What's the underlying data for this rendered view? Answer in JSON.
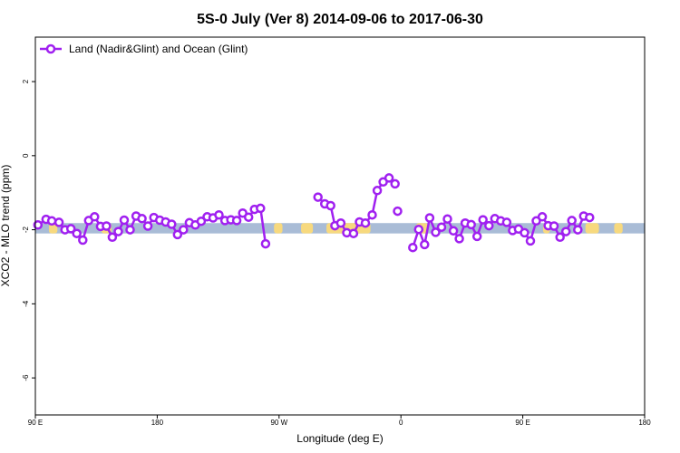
{
  "chart_data": {
    "type": "line",
    "title": "5S-0 July (Ver 8)   2014-09-06 to 2017-06-30",
    "xlabel": "Longitude (deg E)",
    "ylabel": "XCO2 - MLO trend (ppm)",
    "xlim": [
      90,
      450
    ],
    "ylim": [
      -7,
      3.2
    ],
    "x_ticks": [
      {
        "value": 90,
        "label": "90 E"
      },
      {
        "value": 162,
        "label": "180"
      },
      {
        "value": 234,
        "label": "90 W"
      },
      {
        "value": 306,
        "label": "0"
      },
      {
        "value": 378,
        "label": "90 E"
      },
      {
        "value": 450,
        "label": "180"
      }
    ],
    "y_ticks": [
      {
        "value": 2,
        "label": "2"
      },
      {
        "value": 0,
        "label": "0"
      },
      {
        "value": -2,
        "label": "-2"
      },
      {
        "value": -4,
        "label": "-4"
      },
      {
        "value": -6,
        "label": "-6"
      }
    ],
    "grid": false,
    "legend": {
      "position": "top-left",
      "entries": [
        "Land (Nadir&Glint) and Ocean (Glint)"
      ]
    },
    "colors": {
      "series": "#a020f0",
      "ocean_band": "#a9bcd6",
      "land_band": "#f7d97e"
    },
    "background_band": {
      "y_range": [
        -2.1,
        -1.82
      ],
      "land_segments": [
        [
          98,
          103
        ],
        [
          129,
          135
        ],
        [
          231,
          236
        ],
        [
          247,
          254
        ],
        [
          262,
          288
        ],
        [
          315,
          322
        ],
        [
          390,
          394
        ],
        [
          415,
          423
        ],
        [
          432,
          437
        ]
      ]
    },
    "series": [
      {
        "name": "Land (Nadir&Glint) and Ocean (Glint)",
        "segments": [
          [
            [
              91.5,
              -1.87
            ],
            [
              96.3,
              -1.72
            ],
            [
              99.7,
              -1.76
            ],
            [
              104,
              -1.8
            ],
            [
              107.5,
              -2.0
            ],
            [
              111,
              -1.97
            ],
            [
              114.5,
              -2.1
            ],
            [
              118,
              -2.28
            ],
            [
              121.5,
              -1.75
            ],
            [
              125,
              -1.65
            ],
            [
              128.5,
              -1.91
            ],
            [
              132,
              -1.9
            ],
            [
              135.5,
              -2.2
            ],
            [
              139,
              -2.05
            ],
            [
              142.5,
              -1.74
            ],
            [
              146,
              -2.0
            ],
            [
              149.5,
              -1.63
            ],
            [
              153,
              -1.7
            ],
            [
              156.5,
              -1.9
            ],
            [
              160,
              -1.67
            ],
            [
              163.5,
              -1.74
            ],
            [
              167,
              -1.79
            ],
            [
              170.5,
              -1.85
            ],
            [
              174,
              -2.13
            ],
            [
              177.5,
              -2.0
            ],
            [
              181,
              -1.81
            ],
            [
              184.5,
              -1.87
            ],
            [
              188,
              -1.77
            ],
            [
              191.5,
              -1.65
            ],
            [
              195,
              -1.68
            ],
            [
              198.5,
              -1.6
            ],
            [
              202,
              -1.75
            ],
            [
              205.5,
              -1.73
            ],
            [
              209,
              -1.75
            ],
            [
              212.5,
              -1.55
            ],
            [
              216,
              -1.66
            ],
            [
              219.5,
              -1.45
            ],
            [
              223,
              -1.42
            ],
            [
              226,
              -2.38
            ]
          ],
          [
            [
              257,
              -1.12
            ],
            [
              261,
              -1.3
            ],
            [
              264.5,
              -1.35
            ],
            [
              267,
              -1.89
            ],
            [
              270.5,
              -1.82
            ],
            [
              274,
              -2.08
            ],
            [
              278,
              -2.1
            ],
            [
              281.5,
              -1.79
            ],
            [
              285,
              -1.82
            ],
            [
              289,
              -1.6
            ],
            [
              292,
              -0.94
            ],
            [
              295.5,
              -0.71
            ],
            [
              299,
              -0.6
            ],
            [
              302.5,
              -0.76
            ]
          ]
        ],
        "isolated": [
          [
            304,
            -1.5
          ]
        ],
        "segments_after": [
          [
            [
              313,
              -2.48
            ],
            [
              316.5,
              -1.99
            ],
            [
              320,
              -2.4
            ],
            [
              323,
              -1.68
            ],
            [
              326.5,
              -2.07
            ],
            [
              330,
              -1.93
            ],
            [
              333.5,
              -1.71
            ],
            [
              337,
              -2.03
            ],
            [
              340.5,
              -2.24
            ],
            [
              344,
              -1.82
            ],
            [
              347.5,
              -1.86
            ],
            [
              351,
              -2.18
            ],
            [
              354.5,
              -1.73
            ],
            [
              358,
              -1.89
            ],
            [
              361.5,
              -1.7
            ],
            [
              365,
              -1.76
            ],
            [
              368.5,
              -1.8
            ],
            [
              372,
              -2.02
            ],
            [
              375.5,
              -1.98
            ],
            [
              379,
              -2.08
            ],
            [
              382.5,
              -2.3
            ],
            [
              386,
              -1.76
            ],
            [
              389.5,
              -1.65
            ],
            [
              393,
              -1.89
            ],
            [
              396.5,
              -1.9
            ],
            [
              400,
              -2.2
            ],
            [
              403.5,
              -2.05
            ],
            [
              407,
              -1.75
            ],
            [
              410.5,
              -2.0
            ],
            [
              414,
              -1.63
            ],
            [
              417.5,
              -1.67
            ]
          ]
        ]
      }
    ]
  }
}
